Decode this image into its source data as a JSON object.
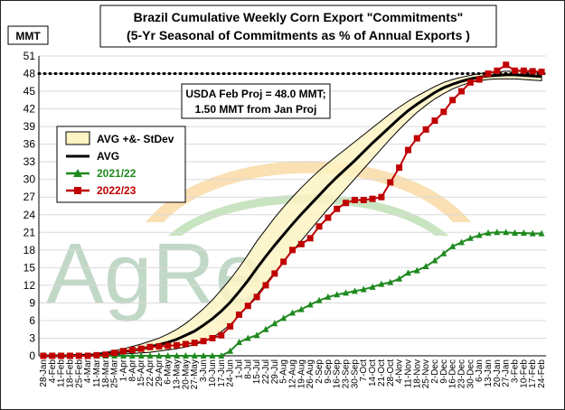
{
  "chart_data": {
    "type": "line",
    "title": "Brazil Cumulative Weekly Corn Export \"Commitments\"",
    "subtitle": "(5-Yr Seasonal of Commitments as % of Annual Exports )",
    "ylabel": "MMT",
    "xlabel": "",
    "ylim": [
      0,
      51
    ],
    "yticks": [
      0,
      3,
      6,
      9,
      12,
      15,
      18,
      21,
      24,
      27,
      30,
      33,
      36,
      39,
      42,
      45,
      48,
      51
    ],
    "grid": true,
    "legend_position": "left",
    "categories": [
      "28-Jan",
      "4-Feb",
      "11-Feb",
      "18-Feb",
      "25-Feb",
      "4-Mar",
      "11-Mar",
      "18-Mar",
      "25-Mar",
      "1-Apr",
      "8-Apr",
      "15-Apr",
      "22-Apr",
      "29-Apr",
      "6-May",
      "13-May",
      "20-May",
      "27-May",
      "3-Jun",
      "10-Jun",
      "17-Jun",
      "24-Jun",
      "1-Jul",
      "8-Jul",
      "15-Jul",
      "22-Jul",
      "29-Jul",
      "5-Aug",
      "12-Aug",
      "19-Aug",
      "26-Aug",
      "2-Sep",
      "9-Sep",
      "16-Sep",
      "23-Sep",
      "30-Sep",
      "7-Oct",
      "14-Oct",
      "21-Oct",
      "28-Oct",
      "4-Nov",
      "11-Nov",
      "18-Nov",
      "25-Nov",
      "2-Dec",
      "9-Dec",
      "16-Dec",
      "23-Dec",
      "30-Dec",
      "6-Jan",
      "13-Jan",
      "20-Jan",
      "27-Jan",
      "3-Feb",
      "10-Feb",
      "17-Feb",
      "24-Feb"
    ],
    "band": {
      "name": "AVG +&- StDev",
      "upper": [
        0,
        0,
        0,
        0,
        0.1,
        0.2,
        0.4,
        0.6,
        0.9,
        1.2,
        1.6,
        2.0,
        2.5,
        3.0,
        3.7,
        4.5,
        5.5,
        6.7,
        8.0,
        9.5,
        11.2,
        13.0,
        15.0,
        17.2,
        19.5,
        21.5,
        23.5,
        25.3,
        27.0,
        28.6,
        30.1,
        31.5,
        32.8,
        34.0,
        35.2,
        36.4,
        37.6,
        38.8,
        40.0,
        41.2,
        42.3,
        43.3,
        44.2,
        45.0,
        45.8,
        46.5,
        47.0,
        47.4,
        47.7,
        48.0,
        48.2,
        48.3,
        48.4,
        48.4,
        48.4,
        48.3,
        48.2
      ],
      "lower": [
        0,
        0,
        0,
        0,
        0,
        0,
        0,
        0.1,
        0.2,
        0.3,
        0.4,
        0.5,
        0.6,
        0.8,
        1.0,
        1.2,
        1.5,
        1.9,
        2.4,
        3.1,
        4.1,
        5.3,
        6.8,
        8.5,
        10.4,
        12.3,
        14.2,
        16.0,
        17.8,
        19.6,
        21.4,
        23.2,
        25.0,
        26.7,
        28.4,
        30.1,
        31.8,
        33.5,
        35.2,
        36.9,
        38.5,
        40.0,
        41.4,
        42.6,
        43.7,
        44.6,
        45.4,
        46.0,
        46.5,
        46.8,
        47.0,
        47.1,
        47.1,
        47.1,
        47.0,
        46.9,
        46.8
      ]
    },
    "series": [
      {
        "name": "AVG",
        "color": "#000000",
        "values": [
          0,
          0,
          0,
          0,
          0.1,
          0.1,
          0.2,
          0.3,
          0.5,
          0.7,
          0.9,
          1.2,
          1.5,
          1.9,
          2.3,
          2.8,
          3.5,
          4.2,
          5.2,
          6.3,
          7.6,
          9.1,
          10.9,
          12.8,
          14.9,
          16.9,
          18.8,
          20.6,
          22.4,
          24.1,
          25.7,
          27.3,
          28.9,
          30.4,
          31.8,
          33.2,
          34.7,
          36.2,
          37.6,
          39.0,
          40.4,
          41.7,
          42.8,
          43.8,
          44.8,
          45.6,
          46.2,
          46.7,
          47.1,
          47.4,
          47.6,
          47.7,
          47.8,
          47.8,
          47.7,
          47.6,
          47.5
        ]
      },
      {
        "name": "2021/22",
        "color": "#1e8a1e",
        "marker": "triangle",
        "values": [
          0,
          0,
          0,
          0,
          0,
          0,
          0,
          0,
          0,
          0,
          0,
          0,
          0,
          0,
          0,
          0,
          0,
          0,
          0,
          0,
          0,
          0.8,
          2.3,
          3.0,
          3.5,
          4.5,
          5.5,
          6.4,
          7.3,
          7.9,
          8.7,
          9.4,
          10.0,
          10.4,
          10.7,
          11.0,
          11.3,
          11.7,
          12.2,
          12.5,
          13.1,
          14.1,
          14.5,
          15.2,
          16.2,
          17.4,
          18.6,
          19.3,
          20.0,
          20.5,
          20.9,
          21.0,
          21.0,
          20.9,
          20.9,
          20.8,
          20.8
        ]
      },
      {
        "name": "2022/23",
        "color": "#c00000",
        "marker": "square",
        "values": [
          0,
          0,
          0,
          0,
          0,
          0,
          0.1,
          0.2,
          0.5,
          0.8,
          1.0,
          1.2,
          1.5,
          1.6,
          1.7,
          1.8,
          2.0,
          2.2,
          2.5,
          3.0,
          3.5,
          5.0,
          7.0,
          8.5,
          10.0,
          12.0,
          14.0,
          16.0,
          18.0,
          19.0,
          20.0,
          22.0,
          23.5,
          25.0,
          26.0,
          26.5,
          26.5,
          26.7,
          27.0,
          29.5,
          32.0,
          35.0,
          37.0,
          38.5,
          40.0,
          41.5,
          43.5,
          45.0,
          46.5,
          47.0,
          48.0,
          48.5,
          49.5,
          48.5,
          48.5,
          48.4,
          48.3
        ]
      }
    ],
    "reference_line": {
      "value": 48,
      "style": "dotted"
    },
    "annotation": {
      "line1": "USDA Feb Proj = 48.0 MMT;",
      "line2": "1.50 MMT from Jan Proj"
    }
  },
  "watermark": {
    "text": "AgRe",
    "color": "#8fb99a"
  }
}
